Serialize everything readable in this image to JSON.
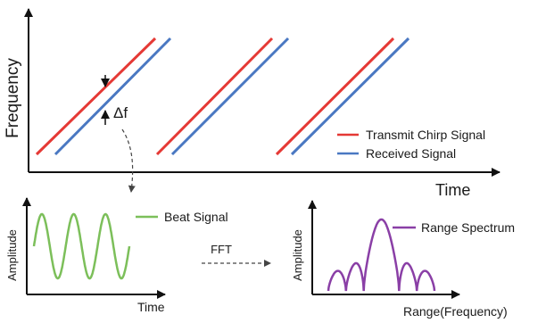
{
  "colors": {
    "transmit": "#e53935",
    "received": "#4a78c2",
    "beat": "#7cbf5a",
    "spectrum": "#8a3fa6",
    "axis": "#111111",
    "arrow": "#444444"
  },
  "main_plot": {
    "ylabel": "Frequency",
    "xlabel": "Time",
    "delta_label": "Δf",
    "legend": [
      {
        "name": "Transmit Chirp Signal",
        "color_key": "transmit"
      },
      {
        "name": "Received Signal",
        "color_key": "received"
      }
    ]
  },
  "beat_plot": {
    "ylabel": "Amplitude",
    "xlabel": "Time",
    "legend": "Beat Signal"
  },
  "fft_label": "FFT",
  "spectrum_plot": {
    "ylabel": "Amplitude",
    "xlabel": "Range(Frequency)",
    "legend": "Range Spectrum"
  }
}
